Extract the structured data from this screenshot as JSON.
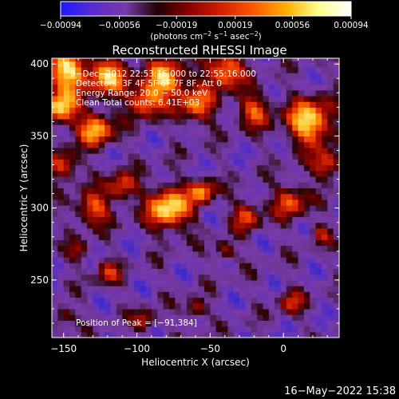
{
  "chart_data": {
    "type": "heatmap",
    "title": "Reconstructed RHESSI Image",
    "xlabel": "Heliocentric X (arcsec)",
    "ylabel": "Heliocentric Y (arcsec)",
    "xlim": [
      -158,
      38
    ],
    "ylim": [
      210,
      404
    ],
    "xticks": [
      -150,
      -100,
      -50,
      0
    ],
    "yticks": [
      250,
      300,
      350,
      400
    ],
    "xtick_labels": [
      "−150",
      "−100",
      "−50",
      "0"
    ],
    "ytick_labels": [
      "250",
      "300",
      "350",
      "400"
    ],
    "colorbar": {
      "ticks": [
        -0.00094,
        -0.00056,
        -0.00019,
        0.00019,
        0.00056,
        0.00094
      ],
      "tick_labels": [
        "−0.00094",
        "−0.00056",
        "−0.00019",
        "0.00019",
        "0.00056",
        "0.00094"
      ],
      "unit_parts": [
        "(photons cm",
        "−2",
        " s",
        "−1",
        " asec",
        "−2",
        ")"
      ],
      "colors": [
        "#1a1aff",
        "#5a2ad0",
        "#7a3aa8",
        "#200000",
        "#8a0000",
        "#d42000",
        "#ff5a00",
        "#ffb000",
        "#ffff90",
        "#ffffff"
      ]
    },
    "annotations": [
      "9−Dec−2012 22:53:16.000 to 22:55:16.000",
      "Detectors: 3F 4F 5F 6F 7F 8F, Att 0",
      "Energy Range: 20.0 − 50.0 keV",
      "Clean    Total counts: 6.41E+03"
    ],
    "peak_label": "Position of Peak = [−91,384]",
    "peak": [
      -91,
      384
    ],
    "grid": false,
    "blobs": [
      [
        -148,
        395,
        10,
        0.95
      ],
      [
        -120,
        392,
        9,
        0.85
      ],
      [
        -80,
        390,
        9,
        0.9
      ],
      [
        -40,
        396,
        9,
        0.8
      ],
      [
        -152,
        370,
        8,
        0.9
      ],
      [
        -128,
        355,
        8,
        0.85
      ],
      [
        -95,
        375,
        8,
        0.75
      ],
      [
        -60,
        372,
        9,
        0.65
      ],
      [
        -20,
        368,
        8,
        0.6
      ],
      [
        18,
        360,
        11,
        0.95
      ],
      [
        30,
        330,
        7,
        0.6
      ],
      [
        -78,
        300,
        10,
        1.0
      ],
      [
        -55,
        312,
        6,
        0.7
      ],
      [
        -130,
        300,
        8,
        0.65
      ],
      [
        -110,
        315,
        7,
        0.6
      ],
      [
        -150,
        330,
        7,
        0.6
      ],
      [
        -25,
        295,
        7,
        0.55
      ],
      [
        5,
        305,
        8,
        0.6
      ],
      [
        -40,
        270,
        5,
        0.45
      ],
      [
        -120,
        255,
        6,
        0.45
      ],
      [
        -60,
        230,
        5,
        0.5
      ],
      [
        5,
        235,
        6,
        0.45
      ],
      [
        -150,
        225,
        5,
        0.45
      ],
      [
        -95,
        222,
        5,
        0.5
      ],
      [
        25,
        282,
        5,
        0.4
      ],
      [
        -140,
        270,
        5,
        0.4
      ]
    ]
  },
  "footer_date": "16−May−2022 15:38"
}
